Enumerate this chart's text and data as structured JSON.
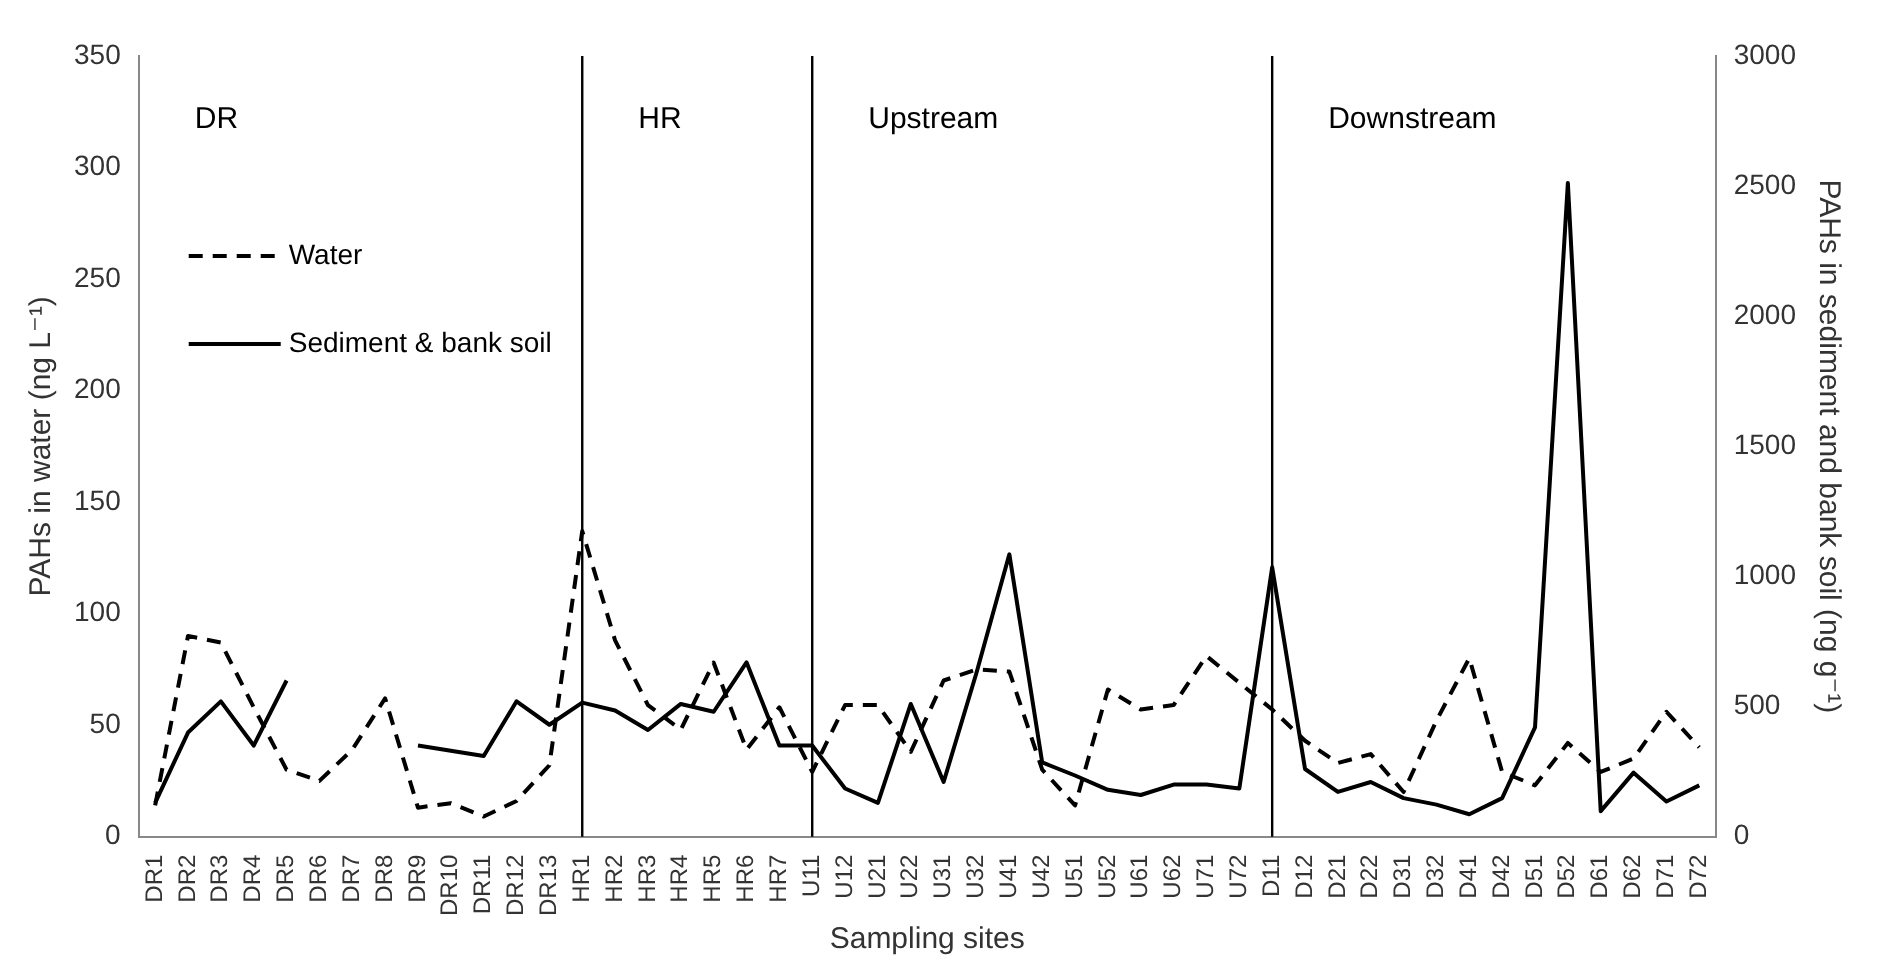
{
  "chart_data": {
    "type": "line",
    "xlabel": "Sampling sites",
    "ylabel": "PAHs in water (ng L⁻¹)",
    "y2label": "PAHs in sediment and bank soil (ng g⁻¹)",
    "categories": [
      "DR1",
      "DR2",
      "DR3",
      "DR4",
      "DR5",
      "DR6",
      "DR7",
      "DR8",
      "DR9",
      "DR10",
      "DR11",
      "DR12",
      "DR13",
      "HR1",
      "HR2",
      "HR3",
      "HR4",
      "HR5",
      "HR6",
      "HR7",
      "U11",
      "U12",
      "U21",
      "U22",
      "U31",
      "U32",
      "U41",
      "U42",
      "U51",
      "U52",
      "U61",
      "U62",
      "U71",
      "U72",
      "D11",
      "D12",
      "D21",
      "D22",
      "D31",
      "D32",
      "D41",
      "D42",
      "D51",
      "D52",
      "D61",
      "D62",
      "D71",
      "D72"
    ],
    "series": [
      {
        "name": "Water",
        "color": "#000000",
        "line_style": "dashed",
        "values": [
          14,
          90,
          87,
          58,
          30,
          25,
          39,
          62,
          13,
          15,
          9,
          16,
          32,
          137,
          88,
          59,
          48,
          78,
          39,
          58,
          29,
          59,
          59,
          38,
          70,
          75,
          74,
          30,
          14,
          66,
          57,
          59,
          81,
          69,
          57,
          43,
          33,
          37,
          20,
          52,
          80,
          29,
          23,
          42,
          29,
          35,
          56,
          40
        ]
      },
      {
        "name": "Sediment & bank soil",
        "color": "#000000",
        "line_style": "solid",
        "axis": "y2",
        "values": [
          130,
          400,
          520,
          350,
          600,
          null,
          null,
          null,
          350,
          330,
          310,
          520,
          430,
          515,
          485,
          410,
          510,
          480,
          670,
          350,
          350,
          185,
          130,
          510,
          210,
          630,
          1085,
          285,
          235,
          180,
          160,
          200,
          200,
          185,
          1035,
          260,
          172,
          210,
          148,
          123,
          86,
          148,
          420,
          2512,
          98,
          246,
          135,
          197
        ]
      }
    ],
    "ylim": [
      0,
      350
    ],
    "yticks": [
      0,
      50,
      100,
      150,
      200,
      250,
      300,
      350
    ],
    "y2lim": [
      0,
      3000
    ],
    "y2ticks": [
      0,
      500,
      1000,
      1500,
      2000,
      2500,
      3000
    ],
    "annotations": [
      "DR"
    ],
    "ref_lines": [
      {
        "axis": "x",
        "value": "HR1",
        "label": "HR",
        "color": "#000000"
      },
      {
        "axis": "x",
        "value": "U11",
        "label": "Upstream",
        "color": "#000000"
      },
      {
        "axis": "x",
        "value": "D11",
        "label": "Downstream",
        "color": "#000000"
      }
    ],
    "grid": false,
    "legend": "top left",
    "marker": "none"
  }
}
